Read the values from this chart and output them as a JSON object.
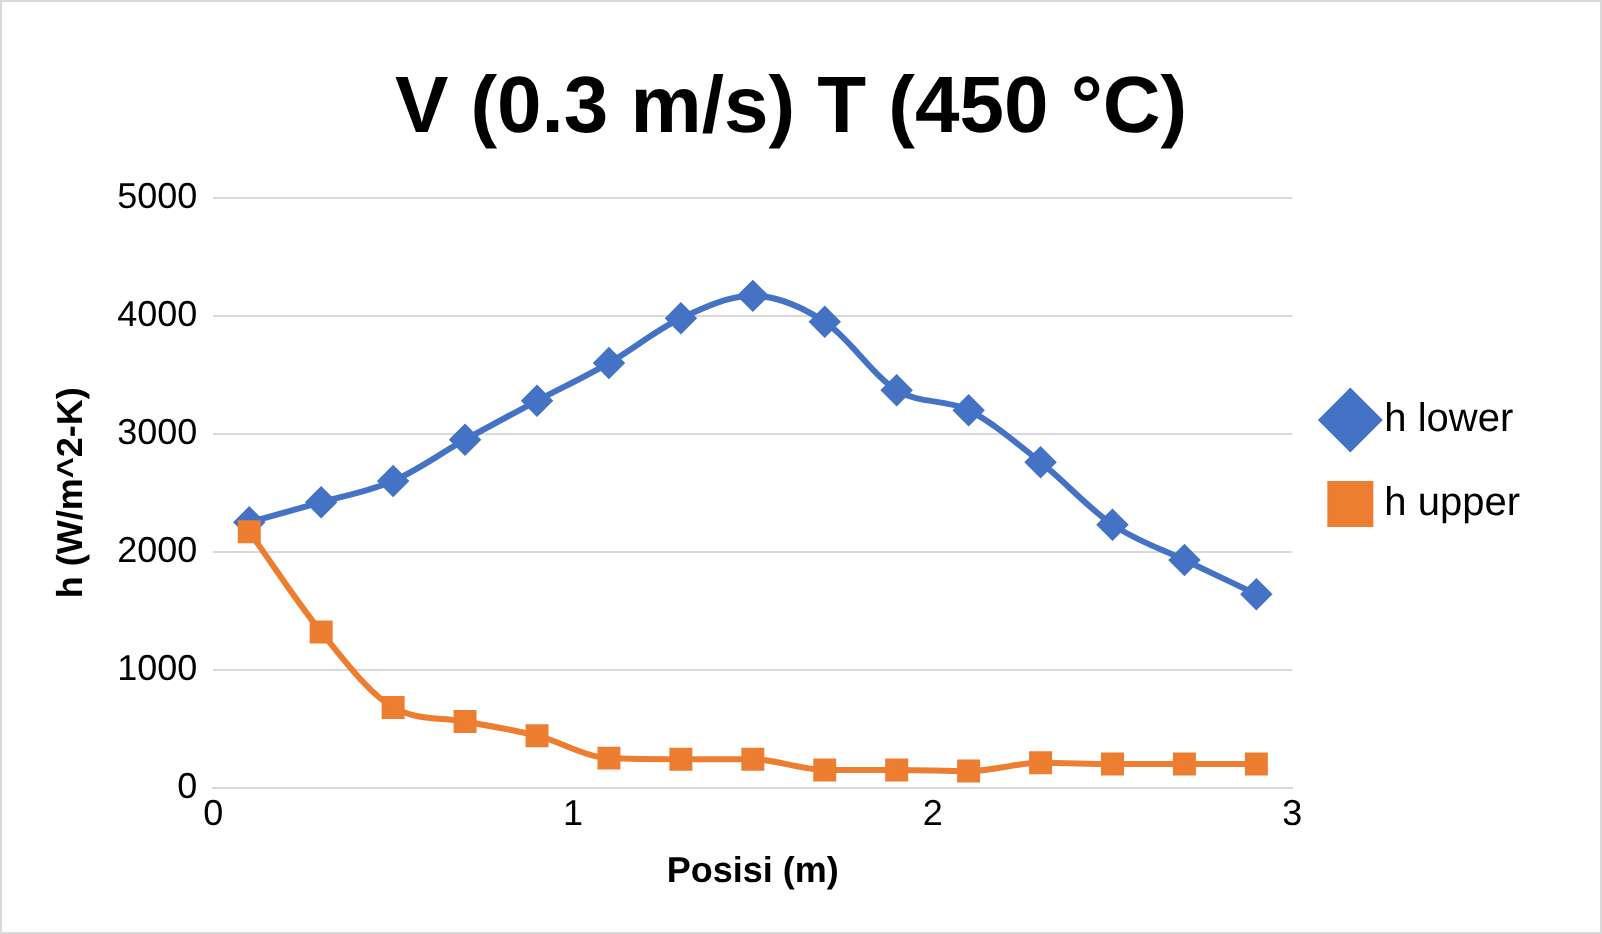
{
  "chart_data": {
    "type": "line",
    "title": "V (0.3 m/s) T (450 °C)",
    "xlabel": "Posisi (m)",
    "ylabel": "h (W/m^2-K)",
    "x": [
      0.1,
      0.3,
      0.5,
      0.7,
      0.9,
      1.1,
      1.3,
      1.5,
      1.7,
      1.9,
      2.1,
      2.3,
      2.5,
      2.7,
      2.9
    ],
    "series": [
      {
        "name": "h lower",
        "color": "#4472c4",
        "marker": "diamond",
        "values": [
          2250,
          2420,
          2600,
          2950,
          3280,
          3600,
          3980,
          4170,
          3950,
          3370,
          3200,
          2760,
          2230,
          1930,
          1640
        ]
      },
      {
        "name": "h upper",
        "color": "#ed7d31",
        "marker": "square",
        "values": [
          2170,
          1320,
          680,
          560,
          440,
          250,
          240,
          240,
          150,
          150,
          140,
          210,
          200,
          200,
          200
        ]
      }
    ],
    "xlim": [
      0,
      3
    ],
    "xticks": [
      0,
      1,
      2,
      3
    ],
    "ylim": [
      0,
      5000
    ],
    "yticks": [
      0,
      1000,
      2000,
      3000,
      4000,
      5000
    ],
    "grid": "y",
    "legend": "right"
  }
}
